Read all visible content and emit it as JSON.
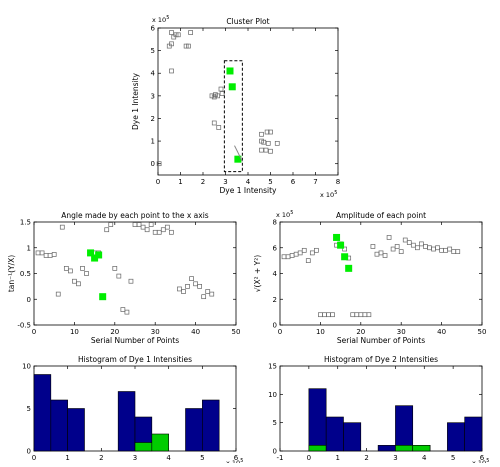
{
  "colors": {
    "marker_green": "#00ee00",
    "bar_blue": "#00008b",
    "bar_green": "#00cc00",
    "selection_box": "#000000",
    "gray": "#666666"
  },
  "chart_data": [
    {
      "id": "cluster",
      "type": "scatter",
      "title": "Cluster Plot",
      "xlabel": "Dye 1 Intensity",
      "ylabel": "Dye 1 Intensity",
      "x_exponent_label": "x 10",
      "x_exponent_power": "5",
      "y_exponent_label": "x 10",
      "y_exponent_power": "5",
      "xlim": [
        0,
        8
      ],
      "ylim": [
        -0.5,
        6
      ],
      "xticks": [
        0,
        1,
        2,
        3,
        4,
        5,
        6,
        7,
        8
      ],
      "yticks": [
        0,
        1,
        2,
        3,
        4,
        5,
        6
      ],
      "selection_box": {
        "x": [
          2.95,
          3.75
        ],
        "y": [
          -0.35,
          4.55
        ]
      },
      "arrow": {
        "from": [
          3.4,
          0.8
        ],
        "to": [
          3.75,
          0.1
        ]
      },
      "series": [
        {
          "style": "gray",
          "points": [
            [
              0.6,
              5.8
            ],
            [
              0.7,
              5.6
            ],
            [
              0.8,
              5.7
            ],
            [
              0.9,
              5.7
            ],
            [
              0.5,
              5.2
            ],
            [
              0.6,
              5.3
            ],
            [
              1.25,
              5.2
            ],
            [
              1.35,
              5.2
            ],
            [
              1.45,
              5.8
            ],
            [
              0.6,
              4.1
            ],
            [
              2.4,
              3.0
            ],
            [
              2.55,
              3.05
            ],
            [
              2.65,
              3.0
            ],
            [
              2.5,
              2.95
            ],
            [
              2.8,
              3.3
            ],
            [
              2.85,
              3.1
            ],
            [
              2.5,
              1.8
            ],
            [
              2.7,
              1.6
            ],
            [
              4.6,
              1.3
            ],
            [
              4.85,
              1.4
            ],
            [
              5.0,
              1.4
            ],
            [
              4.7,
              0.95
            ],
            [
              4.9,
              0.9
            ],
            [
              5.3,
              0.9
            ],
            [
              4.6,
              0.6
            ],
            [
              4.8,
              0.6
            ],
            [
              5.0,
              0.55
            ],
            [
              4.6,
              1.0
            ],
            [
              0.05,
              0.0
            ]
          ]
        },
        {
          "style": "green",
          "points": [
            [
              3.2,
              4.1
            ],
            [
              3.3,
              3.4
            ],
            [
              3.55,
              0.2
            ]
          ]
        }
      ]
    },
    {
      "id": "angle",
      "type": "scatter",
      "title": "Angle made by each point to the x axis",
      "xlabel": "Serial Number of Points",
      "ylabel": "tan⁻¹(Y/X)",
      "xlim": [
        0,
        50
      ],
      "ylim": [
        -0.5,
        1.5
      ],
      "xticks": [
        0,
        10,
        20,
        30,
        40,
        50
      ],
      "yticks": [
        -0.5,
        0,
        0.5,
        1,
        1.5
      ],
      "series": [
        {
          "style": "gray",
          "points": [
            [
              1,
              0.9
            ],
            [
              2,
              0.9
            ],
            [
              3,
              0.85
            ],
            [
              4,
              0.85
            ],
            [
              5,
              0.87
            ],
            [
              6,
              0.1
            ],
            [
              7,
              1.4
            ],
            [
              8,
              0.6
            ],
            [
              9,
              0.55
            ],
            [
              10,
              0.35
            ],
            [
              11,
              0.3
            ],
            [
              12,
              0.6
            ],
            [
              13,
              0.5
            ],
            [
              14,
              0.9
            ],
            [
              15,
              0.9
            ],
            [
              16,
              0.9
            ],
            [
              18,
              1.35
            ],
            [
              19,
              1.45
            ],
            [
              20,
              0.6
            ],
            [
              21,
              0.45
            ],
            [
              22,
              -0.2
            ],
            [
              23,
              -0.25
            ],
            [
              24,
              0.35
            ],
            [
              25,
              1.45
            ],
            [
              26,
              1.45
            ],
            [
              27,
              1.4
            ],
            [
              28,
              1.35
            ],
            [
              29,
              1.45
            ],
            [
              30,
              1.3
            ],
            [
              31,
              1.3
            ],
            [
              32,
              1.35
            ],
            [
              33,
              1.4
            ],
            [
              34,
              1.3
            ],
            [
              36,
              0.2
            ],
            [
              37,
              0.15
            ],
            [
              38,
              0.25
            ],
            [
              39,
              0.4
            ],
            [
              40,
              0.3
            ],
            [
              41,
              0.25
            ],
            [
              42,
              0.05
            ],
            [
              43,
              0.15
            ],
            [
              44,
              0.1
            ]
          ]
        },
        {
          "style": "green",
          "points": [
            [
              14,
              0.9
            ],
            [
              15,
              0.8
            ],
            [
              16,
              0.86
            ],
            [
              17,
              0.05
            ]
          ]
        }
      ]
    },
    {
      "id": "amplitude",
      "type": "scatter",
      "title": "Amplitude of each point",
      "xlabel": "Serial Number of Points",
      "ylabel": "√(X² + Y²)",
      "x_exponent_label": "x 10",
      "x_exponent_power": "5",
      "xlim": [
        0,
        50
      ],
      "ylim": [
        0,
        8
      ],
      "xticks": [
        0,
        10,
        20,
        30,
        40,
        50
      ],
      "yticks": [
        0,
        2,
        4,
        6,
        8
      ],
      "series": [
        {
          "style": "gray",
          "points": [
            [
              1,
              5.3
            ],
            [
              2,
              5.3
            ],
            [
              3,
              5.4
            ],
            [
              4,
              5.5
            ],
            [
              5,
              5.6
            ],
            [
              6,
              5.8
            ],
            [
              7,
              5.0
            ],
            [
              8,
              5.6
            ],
            [
              9,
              5.8
            ],
            [
              10,
              0.8
            ],
            [
              11,
              0.8
            ],
            [
              12,
              0.8
            ],
            [
              13,
              0.8
            ],
            [
              14,
              6.2
            ],
            [
              15,
              6.3
            ],
            [
              16,
              5.9
            ],
            [
              17,
              5.2
            ],
            [
              18,
              0.8
            ],
            [
              19,
              0.8
            ],
            [
              20,
              0.8
            ],
            [
              21,
              0.8
            ],
            [
              22,
              0.8
            ],
            [
              23,
              6.1
            ],
            [
              24,
              5.5
            ],
            [
              25,
              5.6
            ],
            [
              26,
              5.4
            ],
            [
              27,
              6.8
            ],
            [
              28,
              5.9
            ],
            [
              29,
              6.1
            ],
            [
              30,
              5.7
            ],
            [
              31,
              6.6
            ],
            [
              32,
              6.4
            ],
            [
              33,
              6.2
            ],
            [
              34,
              6.0
            ],
            [
              35,
              6.3
            ],
            [
              36,
              6.1
            ],
            [
              37,
              6.0
            ],
            [
              38,
              5.9
            ],
            [
              39,
              6.0
            ],
            [
              40,
              5.8
            ],
            [
              41,
              5.8
            ],
            [
              42,
              5.9
            ],
            [
              43,
              5.7
            ],
            [
              44,
              5.7
            ]
          ]
        },
        {
          "style": "green",
          "points": [
            [
              14,
              6.8
            ],
            [
              15,
              6.2
            ],
            [
              16,
              5.3
            ],
            [
              17,
              4.4
            ]
          ]
        }
      ]
    },
    {
      "id": "hist1",
      "type": "bar",
      "title": "Histogram of Dye 1 Intensities",
      "x_exponent_label": "x 10",
      "x_exponent_power": "5",
      "xlim": [
        0,
        6
      ],
      "ylim": [
        0,
        10
      ],
      "xticks": [
        0,
        1,
        2,
        3,
        4,
        5,
        6
      ],
      "yticks": [
        0,
        5,
        10
      ],
      "bins": [
        {
          "x0": 0.0,
          "x1": 0.5,
          "blue": 9,
          "green": 0
        },
        {
          "x0": 0.5,
          "x1": 1.0,
          "blue": 6,
          "green": 0
        },
        {
          "x0": 1.0,
          "x1": 1.5,
          "blue": 5,
          "green": 0
        },
        {
          "x0": 2.5,
          "x1": 3.0,
          "blue": 7,
          "green": 0
        },
        {
          "x0": 3.0,
          "x1": 3.5,
          "blue": 4,
          "green": 1
        },
        {
          "x0": 3.5,
          "x1": 4.0,
          "blue": 0,
          "green": 2
        },
        {
          "x0": 4.5,
          "x1": 5.0,
          "blue": 5,
          "green": 0
        },
        {
          "x0": 5.0,
          "x1": 5.5,
          "blue": 6,
          "green": 0
        }
      ]
    },
    {
      "id": "hist2",
      "type": "bar",
      "title": "Histogram of Dye 2 Intensities",
      "x_exponent_label": "x 10",
      "x_exponent_power": "5",
      "xlim": [
        -1,
        6
      ],
      "ylim": [
        0,
        15
      ],
      "xticks": [
        -1,
        0,
        1,
        2,
        3,
        4,
        5,
        6
      ],
      "yticks": [
        0,
        5,
        10,
        15
      ],
      "bins": [
        {
          "x0": 0.0,
          "x1": 0.6,
          "blue": 11,
          "green": 1
        },
        {
          "x0": 0.6,
          "x1": 1.2,
          "blue": 6,
          "green": 0
        },
        {
          "x0": 1.2,
          "x1": 1.8,
          "blue": 5,
          "green": 0
        },
        {
          "x0": 2.4,
          "x1": 3.0,
          "blue": 1,
          "green": 0
        },
        {
          "x0": 3.0,
          "x1": 3.6,
          "blue": 8,
          "green": 1
        },
        {
          "x0": 3.6,
          "x1": 4.2,
          "blue": 1,
          "green": 1
        },
        {
          "x0": 4.8,
          "x1": 5.4,
          "blue": 5,
          "green": 0
        },
        {
          "x0": 5.4,
          "x1": 6.0,
          "blue": 6,
          "green": 0
        }
      ]
    }
  ]
}
